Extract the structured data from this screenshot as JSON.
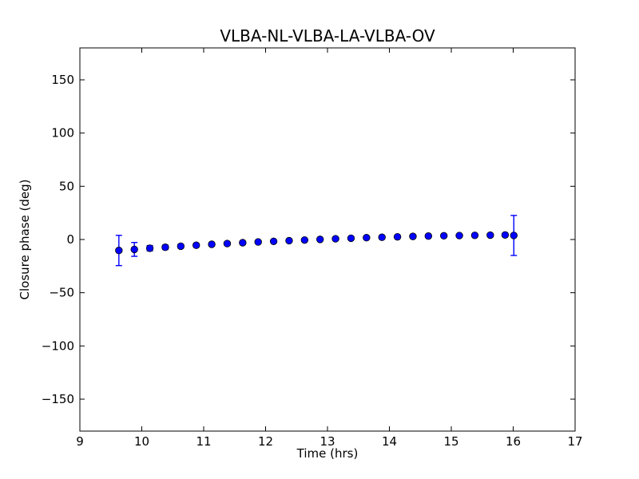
{
  "figure": {
    "background": "#ffffff"
  },
  "chart_data": {
    "type": "scatter",
    "title": "VLBA-NL-VLBA-LA-VLBA-OV",
    "xlabel": "Time (hrs)",
    "ylabel": "Closure phase (deg)",
    "xlim": [
      9,
      17
    ],
    "ylim": [
      -180,
      180
    ],
    "xticks": [
      9,
      10,
      11,
      12,
      13,
      14,
      15,
      16,
      17
    ],
    "yticks": [
      -150,
      -100,
      -50,
      0,
      50,
      100,
      150
    ],
    "grid": false,
    "legend": "none",
    "marker": {
      "shape": "circle",
      "fill_color": "#0000ff",
      "edge_color": "#000000",
      "radius_px": 4.3
    },
    "errorbar_color": "#0000ff",
    "series": [
      {
        "name": "closure phase vs time",
        "x": [
          9.63,
          9.88,
          10.13,
          10.38,
          10.63,
          10.88,
          11.13,
          11.38,
          11.63,
          11.88,
          12.13,
          12.38,
          12.63,
          12.88,
          13.13,
          13.38,
          13.63,
          13.88,
          14.13,
          14.38,
          14.63,
          14.88,
          15.13,
          15.38,
          15.63,
          15.87,
          16.01
        ],
        "y": [
          -10.3,
          -9.3,
          -8.2,
          -7.3,
          -6.3,
          -5.4,
          -4.5,
          -3.8,
          -3.0,
          -2.3,
          -1.7,
          -1.1,
          -0.5,
          0.1,
          0.7,
          1.2,
          1.7,
          2.1,
          2.5,
          2.9,
          3.2,
          3.5,
          3.7,
          3.9,
          4.1,
          4.3,
          3.8
        ],
        "yerr": [
          14.2,
          6.5,
          2.5,
          2.0,
          1.8,
          1.5,
          1.5,
          1.2,
          1.2,
          1.0,
          1.0,
          1.0,
          1.0,
          1.0,
          1.0,
          1.0,
          1.0,
          1.0,
          1.0,
          1.0,
          1.0,
          1.0,
          1.0,
          1.2,
          1.2,
          1.5,
          18.8
        ]
      }
    ]
  }
}
